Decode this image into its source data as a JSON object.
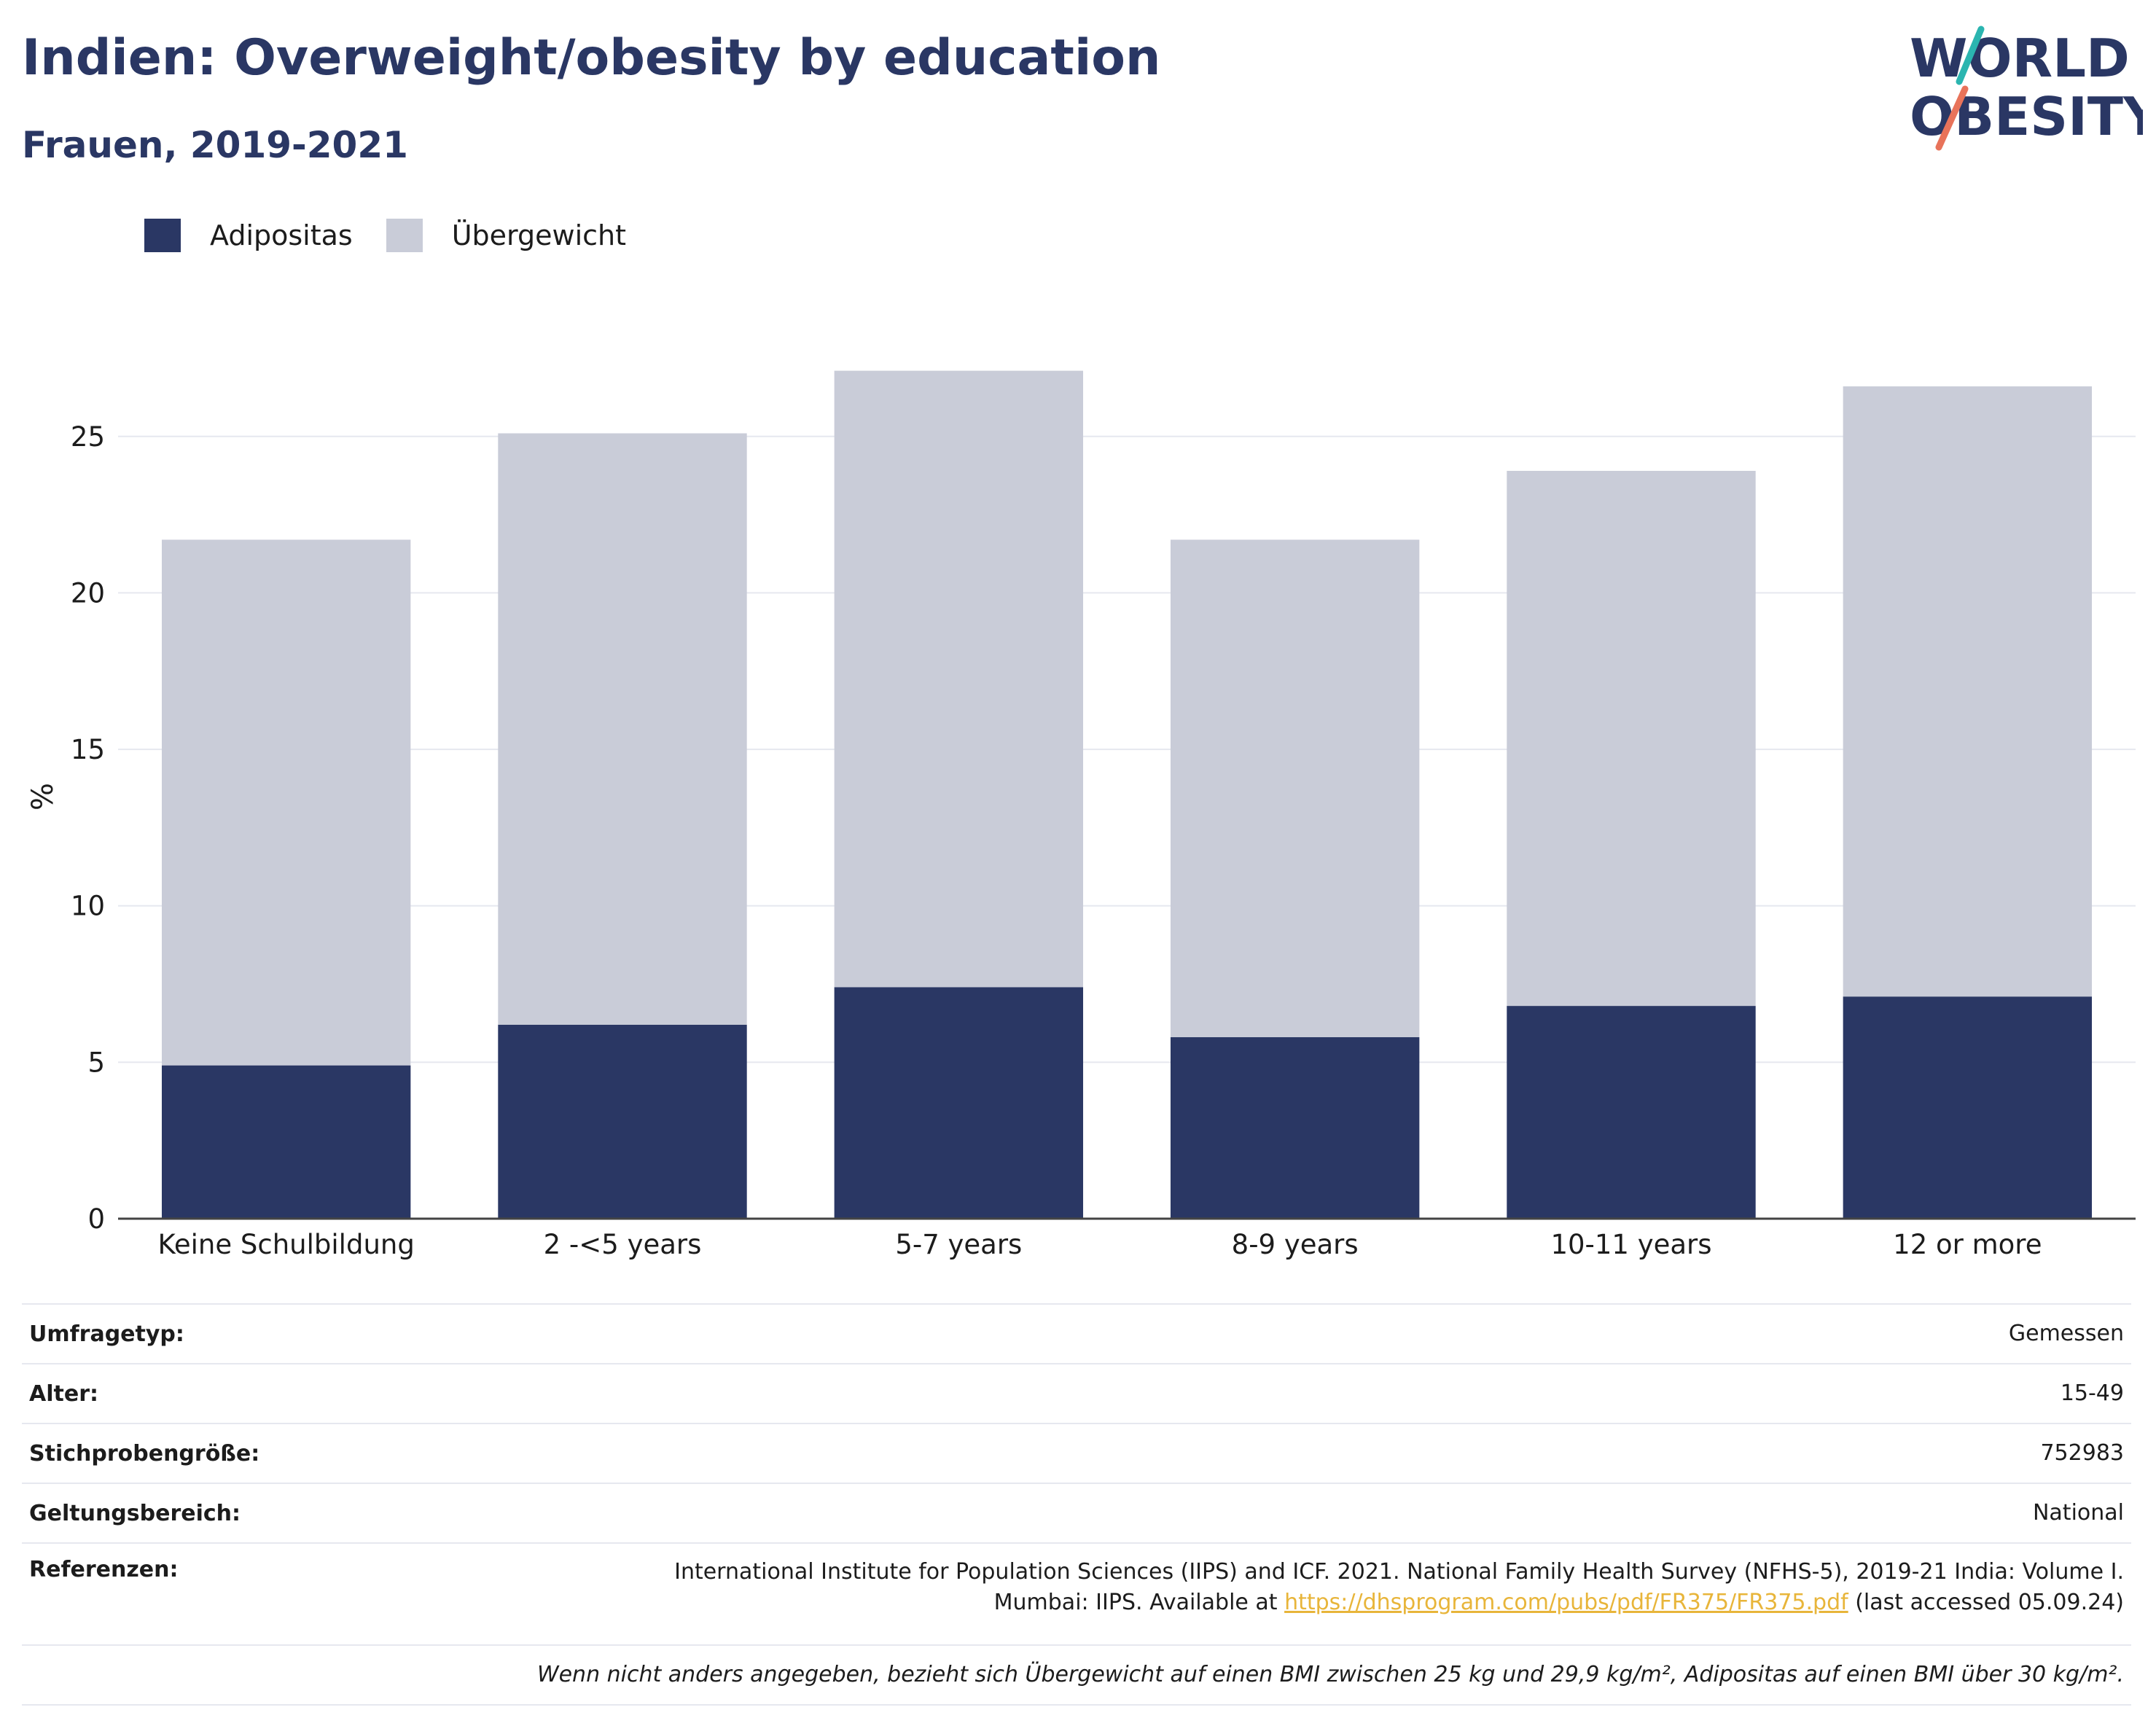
{
  "header": {
    "title": "Indien: Overweight/obesity by education",
    "subtitle": "Frauen, 2019-2021"
  },
  "logo": {
    "line1": "WORLD",
    "line2": "OBESITY"
  },
  "colors": {
    "adipositas": "#2a3764",
    "uebergewicht": "#c9ccd8",
    "grid": "#e6e8ef",
    "axis": "#444444"
  },
  "legend": [
    {
      "label": "Adipositas",
      "color": "#2a3764"
    },
    {
      "label": "Übergewicht",
      "color": "#c9ccd8"
    }
  ],
  "chart_data": {
    "type": "bar",
    "stacked": true,
    "categories": [
      "Keine Schulbildung",
      "2 -<5 years",
      "5-7 years",
      "8-9 years",
      "10-11 years",
      "12 or more"
    ],
    "series": [
      {
        "name": "Adipositas",
        "values": [
          4.9,
          6.2,
          7.4,
          5.8,
          6.8,
          7.1
        ]
      },
      {
        "name": "Übergewicht",
        "values": [
          16.8,
          18.9,
          19.7,
          15.9,
          17.1,
          19.5
        ]
      }
    ],
    "ylabel": "%",
    "xlabel": "",
    "ylim": [
      0,
      28
    ],
    "yticks": [
      0,
      5,
      10,
      15,
      20,
      25
    ],
    "grid": true,
    "legend_position": "top-left"
  },
  "info": {
    "survey_type": {
      "label": "Umfragetyp:",
      "value": "Gemessen"
    },
    "age": {
      "label": "Alter:",
      "value": "15-49"
    },
    "sample_size": {
      "label": "Stichprobengröße:",
      "value": "752983"
    },
    "scope": {
      "label": "Geltungsbereich:",
      "value": "National"
    },
    "references": {
      "label": "Referenzen:",
      "line1": "International Institute for Population Sciences (IIPS) and ICF. 2021. National Family Health Survey (NFHS-5), 2019-21 India: Volume I.",
      "line2_prefix": "Mumbai: IIPS. Available at ",
      "link": "https://dhsprogram.com/pubs/pdf/FR375/FR375.pdf",
      "line2_suffix": " (last accessed 05.09.24)"
    },
    "note": "Wenn nicht anders angegeben, bezieht sich Übergewicht auf einen BMI zwischen 25 kg und 29,9 kg/m², Adipositas auf einen BMI über 30 kg/m²."
  }
}
